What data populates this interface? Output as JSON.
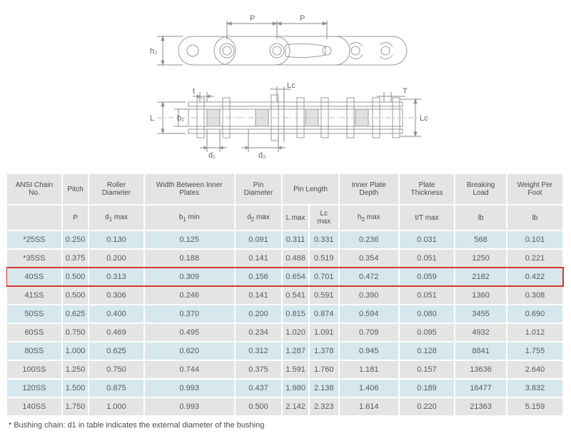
{
  "diagram": {
    "labels": {
      "P": "P",
      "h2": "h₂",
      "t": "t",
      "Lc": "Lc",
      "T": "T",
      "L": "L",
      "b1": "b₁",
      "d1": "d₁",
      "d2": "d₂"
    }
  },
  "table": {
    "header_row1": [
      {
        "label": "ANSI Chain No.",
        "colspan": 1
      },
      {
        "label": "Pitch",
        "colspan": 1
      },
      {
        "label": "Roller Diameter",
        "colspan": 1
      },
      {
        "label": "Width Between Inner Plates",
        "colspan": 1
      },
      {
        "label": "Pin Diameter",
        "colspan": 1
      },
      {
        "label": "Pin Length",
        "colspan": 2
      },
      {
        "label": "Inner Plate Depth",
        "colspan": 1
      },
      {
        "label": "Plate Thickness",
        "colspan": 1
      },
      {
        "label": "Breaking Load",
        "colspan": 1
      },
      {
        "label": "Weight Per Foot",
        "colspan": 1
      }
    ],
    "header_row2": [
      "",
      "P",
      "d₁ max",
      "b₁ min",
      "d₂ max",
      "L max",
      "Lc max",
      "h₂ max",
      "t/T max",
      "lb",
      "lb"
    ],
    "rows": [
      [
        "*25SS",
        "0.250",
        "0.130",
        "0.125",
        "0.091",
        "0.311",
        "0.331",
        "0.236",
        "0.031",
        "568",
        "0.101"
      ],
      [
        "*35SS",
        "0.375",
        "0.200",
        "0.188",
        "0.141",
        "0.488",
        "0.519",
        "0.354",
        "0.051",
        "1250",
        "0.221"
      ],
      [
        "40SS",
        "0.500",
        "0.313",
        "0.309",
        "0.156",
        "0.654",
        "0.701",
        "0.472",
        "0.059",
        "2182",
        "0.422"
      ],
      [
        "41SS",
        "0.500",
        "0.306",
        "0.246",
        "0.141",
        "0.541",
        "0.591",
        "0.390",
        "0.051",
        "1360",
        "0.308"
      ],
      [
        "50SS",
        "0.625",
        "0.400",
        "0.370",
        "0.200",
        "0.815",
        "0.874",
        "0.594",
        "0.080",
        "3455",
        "0.690"
      ],
      [
        "60SS",
        "0.750",
        "0.469",
        "0.495",
        "0.234",
        "1.020",
        "1.091",
        "0.709",
        "0.095",
        "4932",
        "1.012"
      ],
      [
        "80SS",
        "1.000",
        "0.625",
        "0.620",
        "0.312",
        "1.287",
        "1.378",
        "0.945",
        "0.128",
        "8841",
        "1.755"
      ],
      [
        "100SS",
        "1.250",
        "0.750",
        "0.744",
        "0.375",
        "1.591",
        "1.760",
        "1.181",
        "0.157",
        "13636",
        "2.640"
      ],
      [
        "120SS",
        "1.500",
        "0.875",
        "0.993",
        "0.437",
        "1.980",
        "2.138",
        "1.406",
        "0.189",
        "16477",
        "3.832"
      ],
      [
        "140SS",
        "1.750",
        "1.000",
        "0.993",
        "0.500",
        "2.142",
        "2.323",
        "1.614",
        "0.220",
        "21363",
        "5.159"
      ]
    ],
    "highlight_row_index": 2,
    "odd_bg": "#d6e7ee",
    "even_bg": "#e4e4e2",
    "header_bg": "#e4e4e2",
    "highlight_border": "#d9372e"
  },
  "footnote": "* Bushing chain: d1 in table indicates the external diameter of the bushing"
}
